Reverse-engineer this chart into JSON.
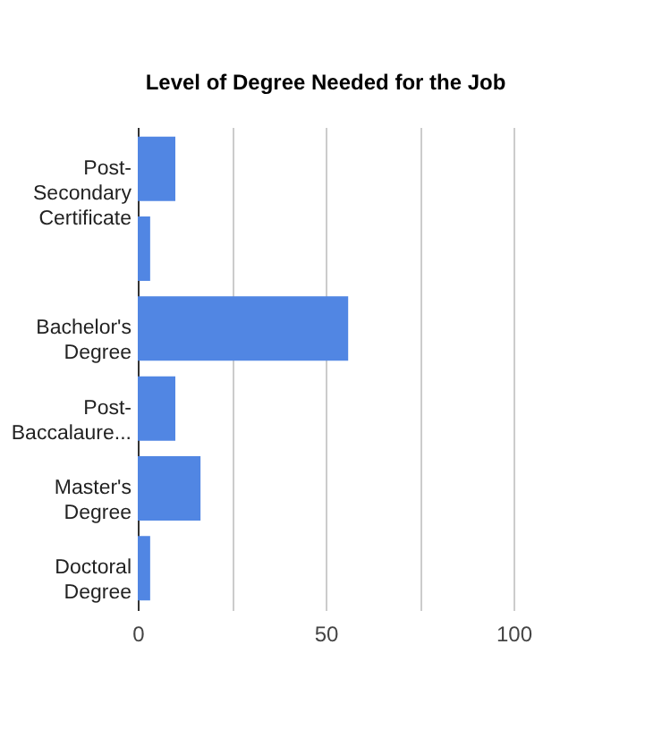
{
  "chart_data": {
    "type": "bar",
    "orientation": "horizontal",
    "title": "Level of Degree Needed for the Job",
    "categories": [
      "Post-Secondary Certificate",
      null,
      "Bachelor's Degree",
      "Post-Baccalaure...",
      "Master's Degree",
      "Doctoral Degree"
    ],
    "values": [
      10,
      3.3,
      56,
      10,
      16.7,
      3.3
    ],
    "color": "#5186e3",
    "xlim": [
      0,
      100
    ],
    "xticks": [
      0,
      {
        "value": 25,
        "label": null
      },
      50,
      {
        "value": 75,
        "label": null
      },
      100
    ],
    "grid": "x"
  }
}
